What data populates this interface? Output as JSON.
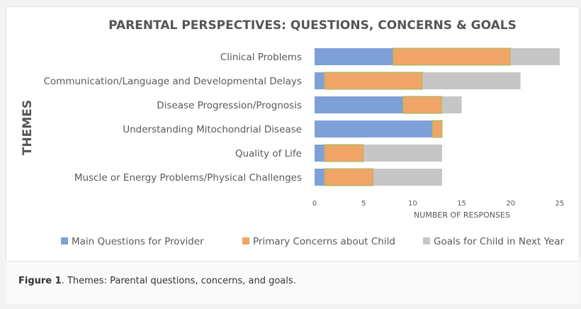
{
  "chart_data": {
    "type": "bar",
    "orientation": "horizontal",
    "stacked": true,
    "title": "PARENTAL PERSPECTIVES: QUESTIONS, CONCERNS & GOALS",
    "xlabel": "NUMBER OF RESPONSES",
    "ylabel": "THEMES",
    "xlim": [
      0,
      25
    ],
    "x_ticks": [
      "0",
      "5",
      "10",
      "15",
      "20",
      "25"
    ],
    "grid": false,
    "legend_position": "bottom",
    "categories": [
      "Clinical Problems",
      "Communication/Language and Developmental Delays",
      "Disease Progression/Prognosis",
      "Understanding Mitochondrial Disease",
      "Quality of Life",
      "Muscle or Energy Problems/Physical Challenges"
    ],
    "series": [
      {
        "name": "Main Questions for Provider",
        "color": "#7f9fd9",
        "values": [
          8,
          1,
          9,
          12,
          1,
          1
        ]
      },
      {
        "name": "Primary Concerns about Child",
        "color": "#f0a468",
        "values": [
          12,
          10,
          4,
          1,
          4,
          5
        ]
      },
      {
        "name": "Goals for Child in Next Year",
        "color": "#c6c6c6",
        "values": [
          5,
          10,
          2,
          0,
          8,
          7
        ]
      }
    ]
  },
  "caption": {
    "label": "Figure 1",
    "text": ". Themes: Parental questions, concerns, and goals."
  }
}
